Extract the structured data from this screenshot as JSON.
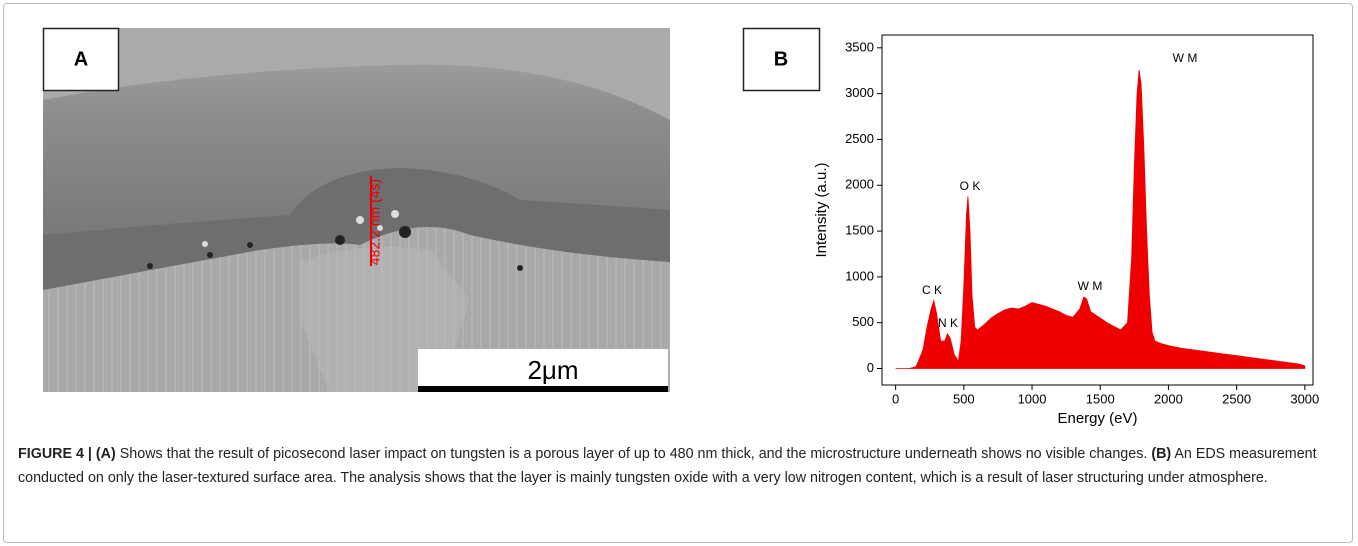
{
  "panel_a": {
    "label": "A",
    "measurement": "482.2 nm (4s)",
    "scale_bar": "2μm"
  },
  "panel_b": {
    "label": "B"
  },
  "chart_data": {
    "type": "area",
    "color": "#ee0000",
    "x_label": "Energy (eV)",
    "y_label": "Intensity (a.u.)",
    "x": [
      0,
      100,
      150,
      200,
      230,
      260,
      280,
      300,
      330,
      360,
      380,
      400,
      430,
      460,
      480,
      500,
      520,
      530,
      545,
      560,
      580,
      600,
      650,
      700,
      750,
      800,
      850,
      900,
      950,
      1000,
      1050,
      1100,
      1150,
      1200,
      1250,
      1300,
      1350,
      1380,
      1400,
      1430,
      1500,
      1550,
      1600,
      1650,
      1700,
      1730,
      1750,
      1770,
      1785,
      1800,
      1820,
      1840,
      1860,
      1880,
      1900,
      1950,
      2000,
      2100,
      2200,
      2300,
      2400,
      2500,
      2600,
      2700,
      2800,
      2900,
      2950,
      3000
    ],
    "values": [
      0,
      0,
      20,
      200,
      450,
      650,
      740,
      600,
      300,
      300,
      380,
      330,
      150,
      80,
      300,
      900,
      1700,
      1880,
      1500,
      800,
      450,
      420,
      480,
      550,
      600,
      640,
      660,
      650,
      680,
      720,
      700,
      680,
      650,
      620,
      580,
      560,
      650,
      780,
      760,
      620,
      550,
      500,
      460,
      420,
      500,
      1200,
      2200,
      3000,
      3260,
      3100,
      2400,
      1500,
      800,
      400,
      300,
      270,
      250,
      220,
      200,
      180,
      160,
      140,
      120,
      100,
      80,
      60,
      50,
      30
    ],
    "annotations": [
      "C K",
      "N K",
      "O K",
      "W M",
      "W M"
    ],
    "xlim": [
      -100,
      3060
    ],
    "ylim": [
      -180,
      3640
    ],
    "xticks": [
      0,
      500,
      1000,
      1500,
      2000,
      2500,
      3000
    ],
    "yticks": [
      0,
      500,
      1000,
      1500,
      2000,
      2500,
      3000,
      3500
    ]
  },
  "caption": {
    "figure_label": "FIGURE 4 |",
    "a_label": "(A)",
    "a_text": "Shows that the result of picosecond laser impact on tungsten is a porous layer of up to 480 nm thick, and the microstructure underneath shows no visible changes.",
    "b_label": "(B)",
    "b_text": "An EDS measurement conducted on only the laser-textured surface area. The analysis shows that the layer is mainly tungsten oxide with a very low nitrogen content, which is a result of laser structuring under atmosphere."
  }
}
